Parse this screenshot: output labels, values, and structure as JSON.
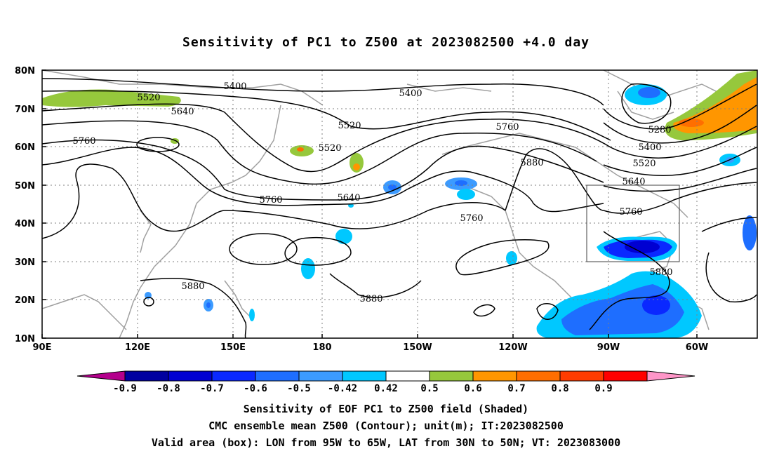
{
  "title": "Sensitivity of PC1 to Z500 at 2023082500 +4.0 day",
  "lat_labels": [
    "80N",
    "70N",
    "60N",
    "50N",
    "40N",
    "30N",
    "20N",
    "10N"
  ],
  "lon_labels": [
    "90E",
    "120E",
    "150E",
    "180",
    "150W",
    "120W",
    "90W",
    "60W"
  ],
  "contour_labels": [
    "5400",
    "5400",
    "5520",
    "5520",
    "5520",
    "5520",
    "5640",
    "5640",
    "5640",
    "5760",
    "5760",
    "5760",
    "5760",
    "5760",
    "5880",
    "5880",
    "5880",
    "5880",
    "5280",
    "5400"
  ],
  "colorbar": {
    "ticks": [
      "-0.9",
      "-0.8",
      "-0.7",
      "-0.6",
      "-0.5",
      "-0.42",
      "0.42",
      "0.5",
      "0.6",
      "0.7",
      "0.8",
      "0.9"
    ],
    "colors": [
      "#b4008c",
      "#0000a0",
      "#0000d2",
      "#0a28ff",
      "#1e6eff",
      "#3c9bff",
      "#00c8ff",
      "#ffffff",
      "#96c83c",
      "#ff9600",
      "#ff6e00",
      "#ff3c00",
      "#ff0000",
      "#ff96c8"
    ]
  },
  "caption": {
    "line1": "Sensitivity of EOF PC1 to Z500 field (Shaded)",
    "line2": "CMC ensemble mean Z500 (Contour); unit(m); IT:2023082500",
    "line3": "Valid area (box): LON from 95W to 65W, LAT from 30N to 50N; VT: 2023083000"
  },
  "colors": {
    "contour": "#000000",
    "coast": "#a0a0a0",
    "grid": "#808080"
  }
}
